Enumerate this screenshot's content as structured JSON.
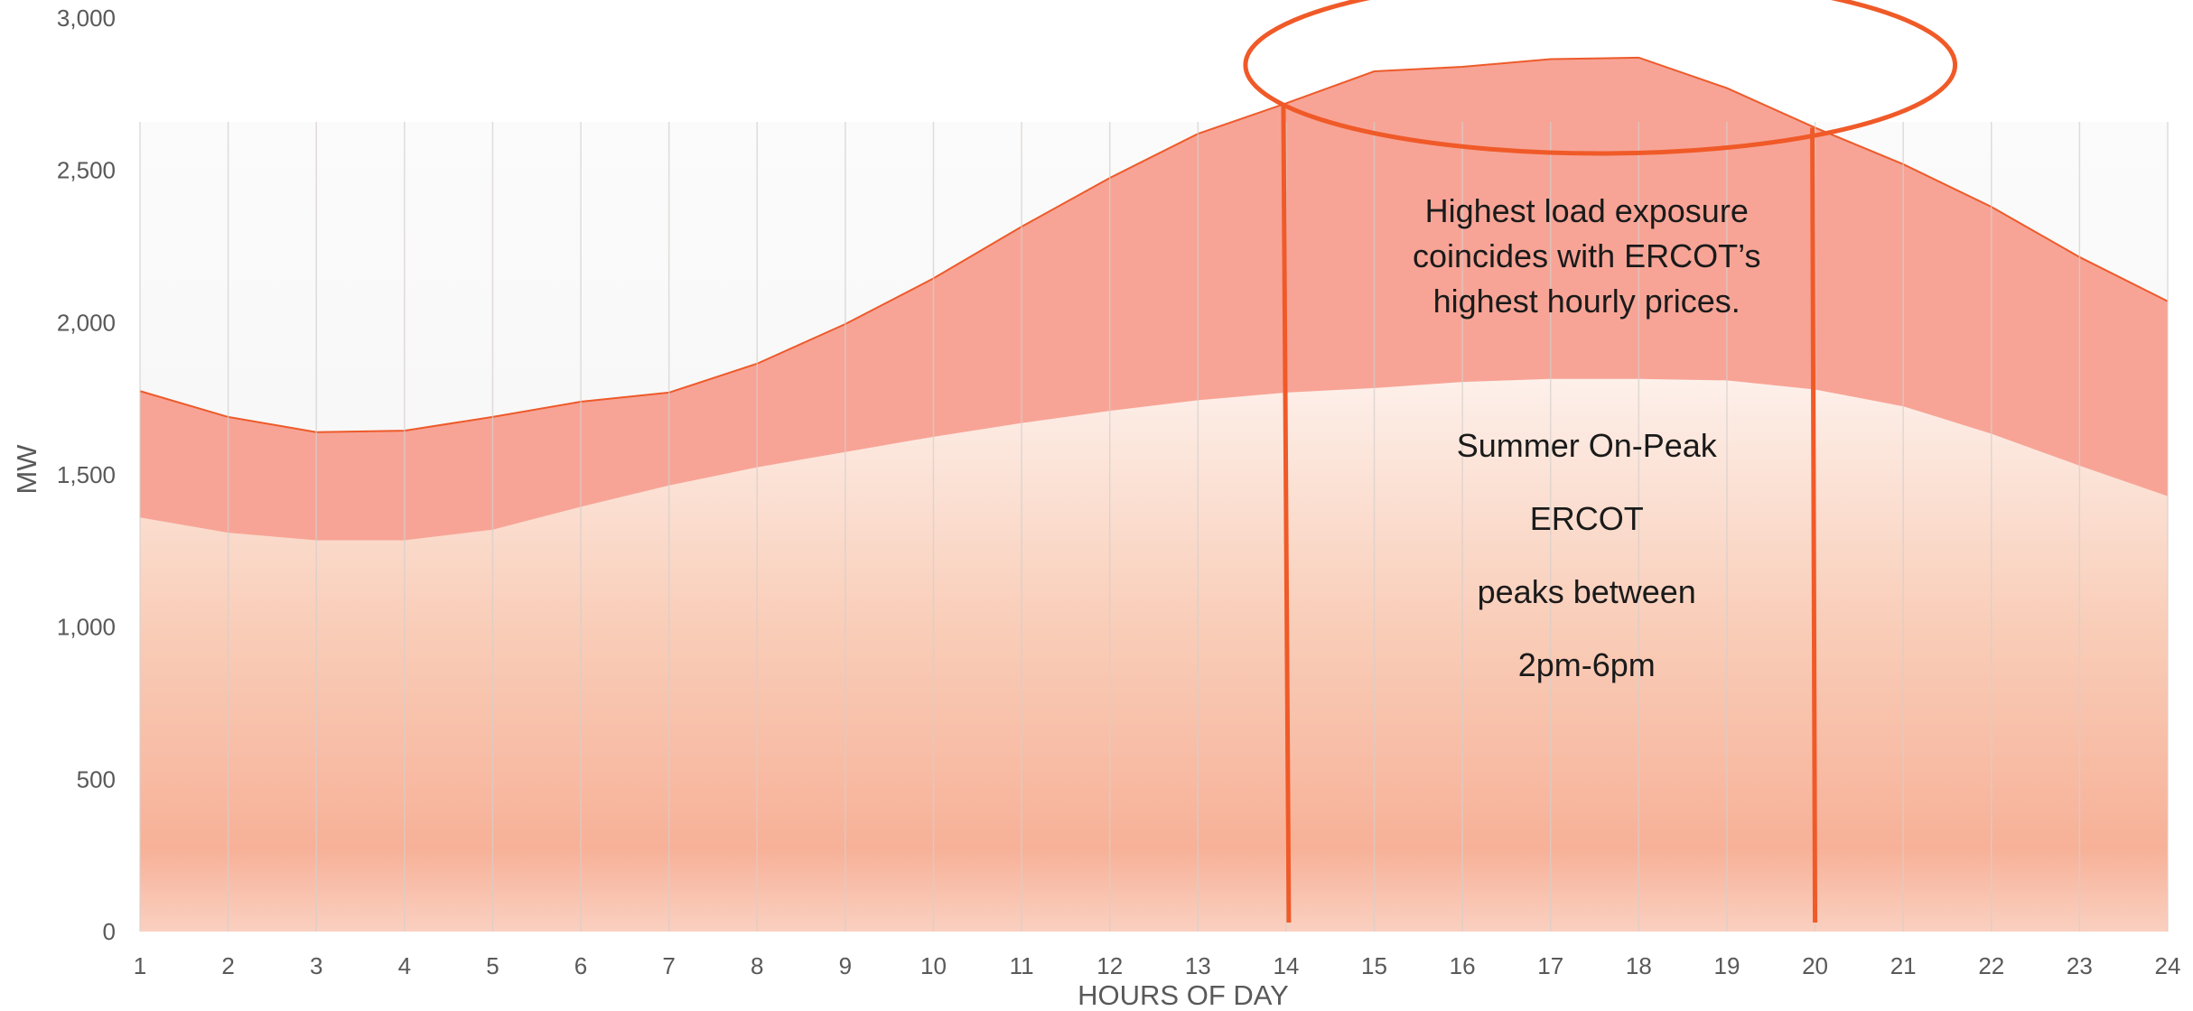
{
  "chart_data": {
    "type": "area",
    "title": "",
    "xlabel": "HOURS OF DAY",
    "ylabel": "MW",
    "x": [
      1,
      2,
      3,
      4,
      5,
      6,
      7,
      8,
      9,
      10,
      11,
      12,
      13,
      14,
      15,
      16,
      17,
      18,
      19,
      20,
      21,
      22,
      23,
      24
    ],
    "ylim": [
      0,
      3000
    ],
    "yticks": [
      0,
      500,
      1000,
      1500,
      2000,
      2500,
      3000
    ],
    "ytick_labels": [
      "0",
      "500",
      "1,000",
      "1,500",
      "2,000",
      "2,500",
      "3,000"
    ],
    "grid": "vertical",
    "series": [
      {
        "values": [
          1360,
          1310,
          1285,
          1285,
          1320,
          1395,
          1465,
          1525,
          1575,
          1625,
          1670,
          1710,
          1745,
          1770,
          1785,
          1805,
          1815,
          1815,
          1810,
          1780,
          1725,
          1635,
          1530,
          1430
        ],
        "color": "#f6b9a3"
      },
      {
        "values": [
          1775,
          1690,
          1640,
          1645,
          1690,
          1740,
          1770,
          1865,
          1995,
          2145,
          2315,
          2475,
          2620,
          2720,
          2825,
          2840,
          2865,
          2870,
          2770,
          2640,
          2520,
          2380,
          2215,
          2070
        ],
        "color": "#f7a496"
      }
    ],
    "highlight": {
      "x_start": 14,
      "x_end": 20,
      "color": "#f05a28"
    },
    "annotations": {
      "callout": [
        "Highest load exposure",
        "coincides with ERCOT’s",
        "highest hourly prices."
      ],
      "label_lines": [
        "Summer On-Peak",
        "ERCOT",
        "peaks between",
        "2pm-6pm"
      ]
    }
  }
}
